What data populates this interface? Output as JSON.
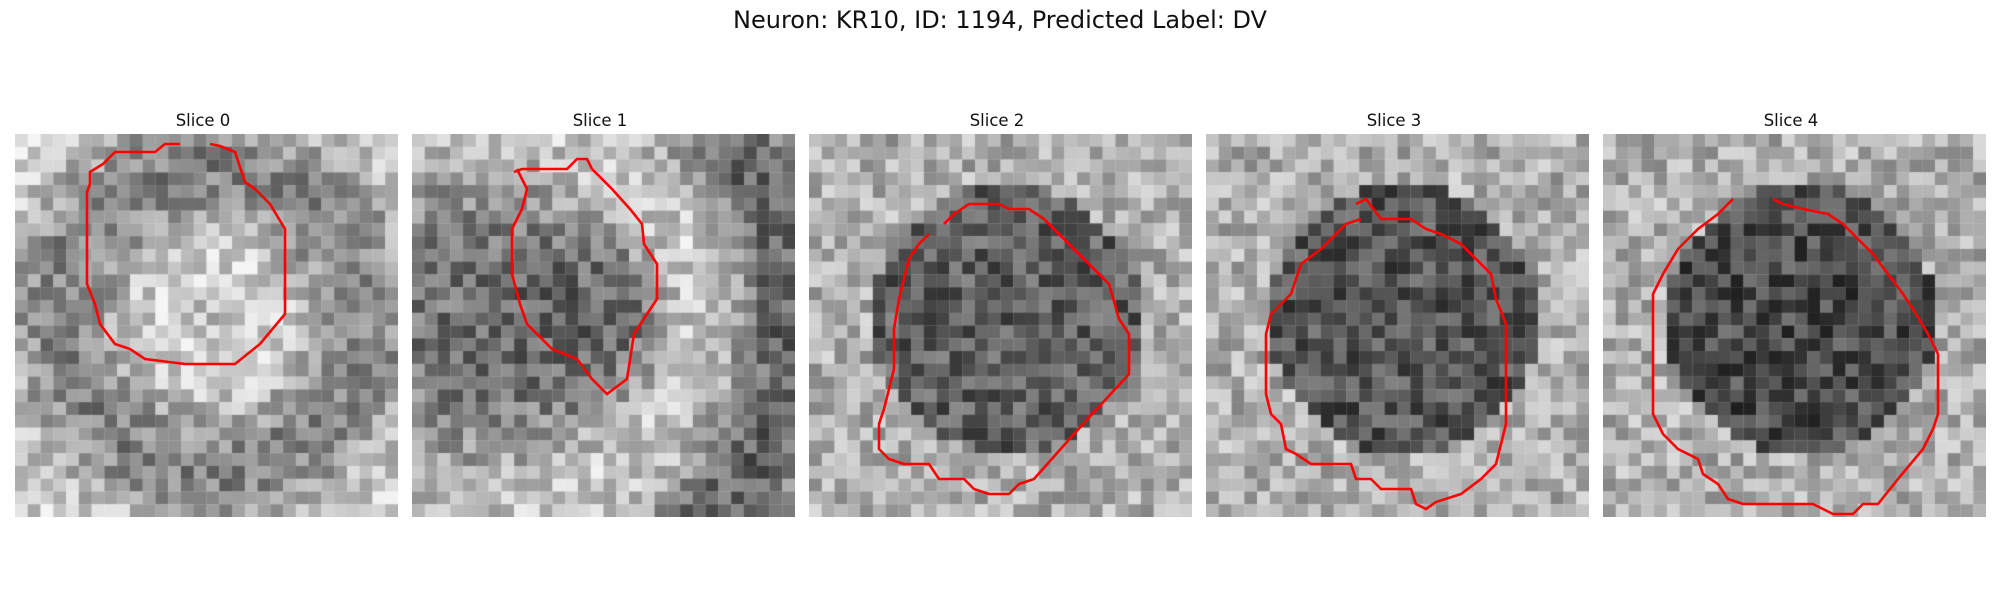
{
  "figure": {
    "title": "Neuron: KR10, ID: 1194, Predicted Label: DV"
  },
  "panels": [
    {
      "title": "Slice 0"
    },
    {
      "title": "Slice 1"
    },
    {
      "title": "Slice 2"
    },
    {
      "title": "Slice 3"
    },
    {
      "title": "Slice 4"
    }
  ],
  "colors": {
    "contour": "#ff0000",
    "background": "#ffffff"
  }
}
